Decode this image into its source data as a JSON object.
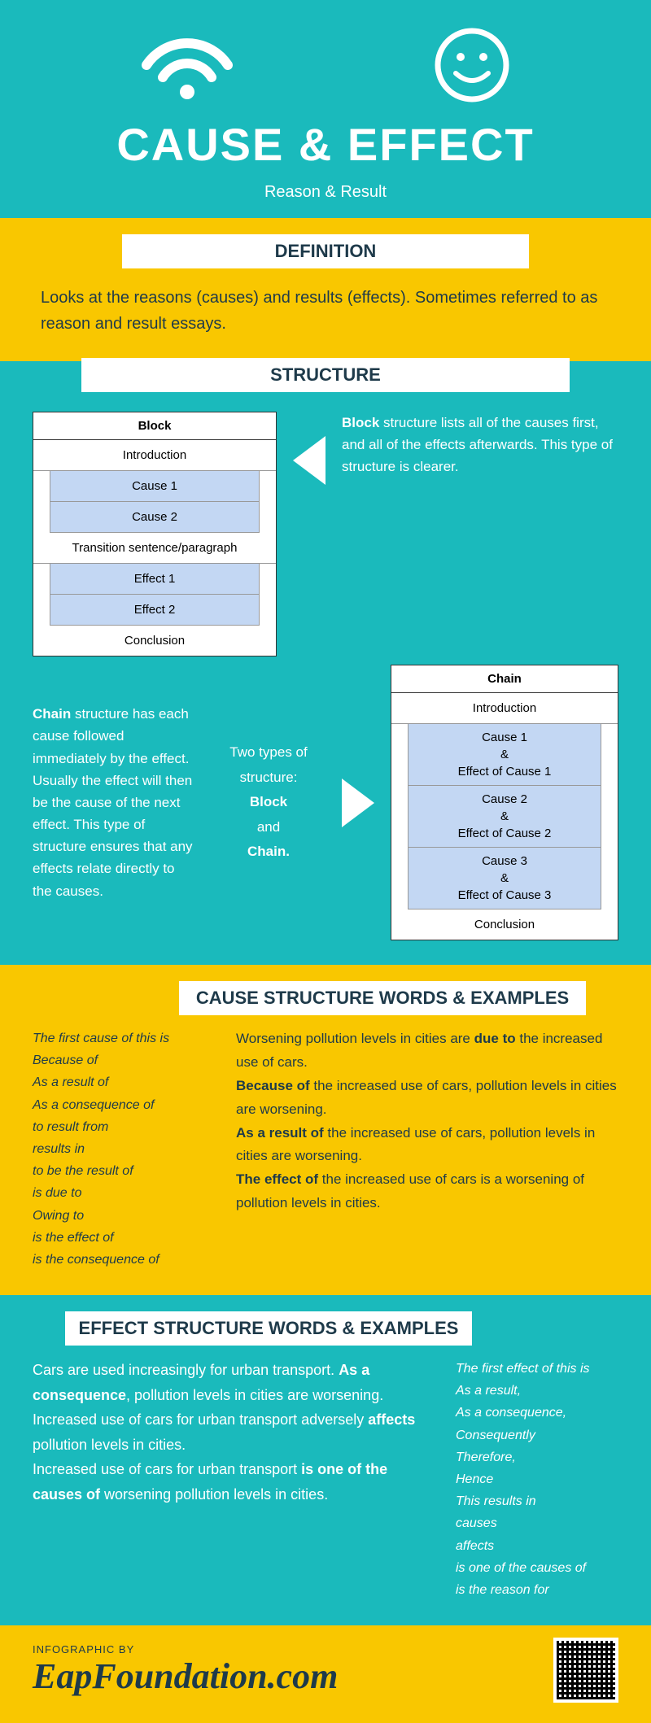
{
  "colors": {
    "teal": "#1ababc",
    "yellow": "#f9c700",
    "dark": "#1e3a4a",
    "white": "#ffffff",
    "cellBlue": "#c3d7f3"
  },
  "hero": {
    "title": "CAUSE & EFFECT",
    "subtitle": "Reason & Result"
  },
  "definition": {
    "heading": "DEFINITION",
    "text": "Looks at the reasons (causes) and results (effects). Sometimes referred to as reason and result essays."
  },
  "structure": {
    "heading": "STRUCTURE",
    "block": {
      "title": "Block",
      "rows": [
        "Introduction",
        "Cause 1",
        "Cause 2",
        "Transition sentence/paragraph",
        "Effect 1",
        "Effect 2",
        "Conclusion"
      ],
      "desc_pre": "Block",
      "desc": " structure lists all of the causes first, and all of the effects afterwards. This type of structure is clearer."
    },
    "mid": {
      "l1": "Two types of",
      "l2": "structure:",
      "l3": "Block",
      "l4": "and",
      "l5": "Chain."
    },
    "chain": {
      "title": "Chain",
      "intro": "Introduction",
      "cells": [
        {
          "a": "Cause 1",
          "b": "Effect of Cause 1"
        },
        {
          "a": "Cause 2",
          "b": "Effect of Cause 2"
        },
        {
          "a": "Cause 3",
          "b": "Effect of Cause 3"
        }
      ],
      "conclusion": "Conclusion",
      "desc_pre": "Chain",
      "desc": " structure has each cause followed immediately by the effect. Usually the effect will then be the cause of the next effect. This type of structure ensures that any effects relate directly to the causes."
    }
  },
  "cause": {
    "heading": "CAUSE STRUCTURE WORDS & EXAMPLES",
    "words": [
      "The first cause of this is",
      "Because of",
      "As a result of",
      "As a consequence of",
      "to result from",
      "results in",
      "to be the result of",
      "is due to",
      "Owing to",
      "is the effect of",
      "is the consequence of"
    ],
    "ex": [
      {
        "p": "Worsening pollution levels in cities are ",
        "b": "due to",
        "s": " the increased use of cars."
      },
      {
        "b": "Because of",
        "s": " the increased use of cars, pollution levels in cities are worsening."
      },
      {
        "b": "As a result of",
        "s": " the increased use of cars, pollution levels in cities are worsening."
      },
      {
        "b": "The effect of",
        "s": " the increased use of cars is a worsening of pollution levels in cities."
      }
    ]
  },
  "effect": {
    "heading": "EFFECT STRUCTURE WORDS & EXAMPLES",
    "ex": [
      {
        "p": "Cars are used increasingly for urban transport. ",
        "b": "As a consequence",
        "s": ", pollution levels in cities are worsening."
      },
      {
        "p": "Increased use of cars for urban transport adversely ",
        "b": "affects",
        "s": " pollution levels in cities."
      },
      {
        "p": "Increased use of cars for urban transport ",
        "b": "is one of the causes of",
        "s": " worsening pollution levels in cities."
      }
    ],
    "words": [
      "The first effect of this is",
      "As a result,",
      "As a consequence,",
      "Consequently",
      "Therefore,",
      "Hence",
      "This results in",
      "causes",
      "affects",
      "is one of the causes of",
      "is the reason for"
    ]
  },
  "footer": {
    "label": "INFOGRAPHIC BY",
    "brand": "EapFoundation.com"
  }
}
